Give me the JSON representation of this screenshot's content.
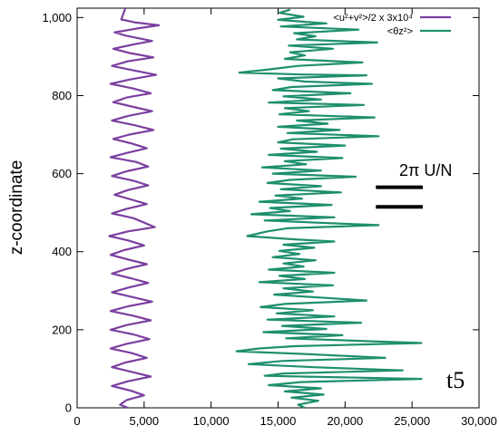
{
  "chart_data": {
    "type": "line",
    "title": "",
    "xlabel": "",
    "ylabel": "z-coordinate",
    "xlim": [
      0,
      30000
    ],
    "ylim": [
      0,
      1024
    ],
    "xticks": [
      "0",
      "5,000",
      "10,000",
      "15,000",
      "20,000",
      "25,000",
      "30,000"
    ],
    "xtick_values": [
      0,
      5000,
      10000,
      15000,
      20000,
      25000,
      30000
    ],
    "yticks": [
      "0",
      "200",
      "400",
      "600",
      "800",
      "1,000"
    ],
    "ytick_values": [
      0,
      200,
      400,
      600,
      800,
      1000
    ],
    "grid": false,
    "legend_position": "top-right",
    "annotations": {
      "scale_label": "2π U/N",
      "panel_label": "t5",
      "scale_bars_x": [
        22300,
        25800
      ],
      "scale_bars_y": [
        565,
        515
      ]
    },
    "series": [
      {
        "name": "<u²+v²>/2 x 3x10⁴",
        "color": "#7b3fa0",
        "points": [
          [
            3600,
            1024
          ],
          [
            3400,
            1005
          ],
          [
            3300,
            995
          ],
          [
            4400,
            987
          ],
          [
            6100,
            980
          ],
          [
            4500,
            972
          ],
          [
            2800,
            962
          ],
          [
            3700,
            953
          ],
          [
            5600,
            940
          ],
          [
            4200,
            931
          ],
          [
            2700,
            920
          ],
          [
            3900,
            909
          ],
          [
            5700,
            898
          ],
          [
            3800,
            888
          ],
          [
            2600,
            876
          ],
          [
            4300,
            864
          ],
          [
            5900,
            853
          ],
          [
            3900,
            841
          ],
          [
            2500,
            830
          ],
          [
            4200,
            818
          ],
          [
            5500,
            806
          ],
          [
            3700,
            795
          ],
          [
            2700,
            783
          ],
          [
            4200,
            771
          ],
          [
            5600,
            760
          ],
          [
            3800,
            748
          ],
          [
            2600,
            736
          ],
          [
            4300,
            724
          ],
          [
            5700,
            712
          ],
          [
            3900,
            700
          ],
          [
            2700,
            689
          ],
          [
            4100,
            677
          ],
          [
            5200,
            665
          ],
          [
            3700,
            653
          ],
          [
            2500,
            642
          ],
          [
            4400,
            630
          ],
          [
            5300,
            618
          ],
          [
            3700,
            606
          ],
          [
            2600,
            594
          ],
          [
            4200,
            582
          ],
          [
            5300,
            570
          ],
          [
            3800,
            558
          ],
          [
            2800,
            546
          ],
          [
            4000,
            534
          ],
          [
            5200,
            522
          ],
          [
            3700,
            510
          ],
          [
            2600,
            498
          ],
          [
            4200,
            486
          ],
          [
            5800,
            463
          ],
          [
            3800,
            452
          ],
          [
            2400,
            440
          ],
          [
            3900,
            428
          ],
          [
            5000,
            416
          ],
          [
            3500,
            404
          ],
          [
            2500,
            392
          ],
          [
            3800,
            380
          ],
          [
            5200,
            368
          ],
          [
            3700,
            356
          ],
          [
            2600,
            344
          ],
          [
            4000,
            332
          ],
          [
            5300,
            320
          ],
          [
            3800,
            308
          ],
          [
            2600,
            296
          ],
          [
            4100,
            284
          ],
          [
            5600,
            272
          ],
          [
            3800,
            260
          ],
          [
            2500,
            248
          ],
          [
            4200,
            236
          ],
          [
            5500,
            224
          ],
          [
            3700,
            212
          ],
          [
            2500,
            200
          ],
          [
            4200,
            188
          ],
          [
            5400,
            176
          ],
          [
            3700,
            164
          ],
          [
            2500,
            152
          ],
          [
            4100,
            140
          ],
          [
            5200,
            128
          ],
          [
            3600,
            116
          ],
          [
            2600,
            104
          ],
          [
            4100,
            92
          ],
          [
            5500,
            80
          ],
          [
            3800,
            68
          ],
          [
            2600,
            56
          ],
          [
            4000,
            44
          ],
          [
            5000,
            32
          ],
          [
            3700,
            20
          ],
          [
            3200,
            8
          ],
          [
            3800,
            0
          ]
        ]
      },
      {
        "name": "<θz²>",
        "color": "#1e8f6e",
        "points": [
          [
            15900,
            1020
          ],
          [
            15100,
            1012
          ],
          [
            16900,
            1002
          ],
          [
            15000,
            994
          ],
          [
            18600,
            985
          ],
          [
            15200,
            977
          ],
          [
            21000,
            969
          ],
          [
            16200,
            960
          ],
          [
            17800,
            952
          ],
          [
            16400,
            944
          ],
          [
            22400,
            936
          ],
          [
            15800,
            928
          ],
          [
            19100,
            920
          ],
          [
            15900,
            911
          ],
          [
            17000,
            903
          ],
          [
            15500,
            894
          ],
          [
            21300,
            885
          ],
          [
            16500,
            876
          ],
          [
            14100,
            866
          ],
          [
            12100,
            859
          ],
          [
            16800,
            854
          ],
          [
            21600,
            852
          ],
          [
            15000,
            844
          ],
          [
            17000,
            836
          ],
          [
            22000,
            830
          ],
          [
            16000,
            822
          ],
          [
            14600,
            814
          ],
          [
            20400,
            806
          ],
          [
            15400,
            798
          ],
          [
            18200,
            790
          ],
          [
            14300,
            782
          ],
          [
            21400,
            776
          ],
          [
            15500,
            768
          ],
          [
            17300,
            760
          ],
          [
            15100,
            752
          ],
          [
            22200,
            744
          ],
          [
            16400,
            736
          ],
          [
            18700,
            728
          ],
          [
            15000,
            720
          ],
          [
            19600,
            712
          ],
          [
            15700,
            704
          ],
          [
            22500,
            696
          ],
          [
            16100,
            688
          ],
          [
            15000,
            680
          ],
          [
            20000,
            672
          ],
          [
            15200,
            664
          ],
          [
            17900,
            656
          ],
          [
            14300,
            648
          ],
          [
            19800,
            640
          ],
          [
            15500,
            632
          ],
          [
            17100,
            624
          ],
          [
            13800,
            616
          ],
          [
            18200,
            608
          ],
          [
            14600,
            600
          ],
          [
            20800,
            592
          ],
          [
            15900,
            584
          ],
          [
            14200,
            576
          ],
          [
            18200,
            568
          ],
          [
            15200,
            560
          ],
          [
            19700,
            552
          ],
          [
            14800,
            544
          ],
          [
            16800,
            536
          ],
          [
            13600,
            528
          ],
          [
            19000,
            520
          ],
          [
            14400,
            512
          ],
          [
            15900,
            504
          ],
          [
            13000,
            496
          ],
          [
            19200,
            488
          ],
          [
            14000,
            480
          ],
          [
            22500,
            468
          ],
          [
            15700,
            460
          ],
          [
            14200,
            452
          ],
          [
            12700,
            440
          ],
          [
            16100,
            432
          ],
          [
            19200,
            426
          ],
          [
            15400,
            418
          ],
          [
            17700,
            410
          ],
          [
            15100,
            402
          ],
          [
            16600,
            394
          ],
          [
            14600,
            386
          ],
          [
            17800,
            378
          ],
          [
            15400,
            370
          ],
          [
            16900,
            362
          ],
          [
            14300,
            354
          ],
          [
            19200,
            346
          ],
          [
            15100,
            338
          ],
          [
            17000,
            330
          ],
          [
            13600,
            322
          ],
          [
            19100,
            314
          ],
          [
            15400,
            306
          ],
          [
            17600,
            298
          ],
          [
            14700,
            290
          ],
          [
            21600,
            275
          ],
          [
            15500,
            266
          ],
          [
            13700,
            258
          ],
          [
            17600,
            250
          ],
          [
            14900,
            242
          ],
          [
            19200,
            234
          ],
          [
            14200,
            226
          ],
          [
            21200,
            218
          ],
          [
            15300,
            210
          ],
          [
            18600,
            202
          ],
          [
            13900,
            194
          ],
          [
            19800,
            186
          ],
          [
            15600,
            178
          ],
          [
            25700,
            166
          ],
          [
            16200,
            158
          ],
          [
            13600,
            152
          ],
          [
            11900,
            145
          ],
          [
            17000,
            138
          ],
          [
            23000,
            128
          ],
          [
            15300,
            120
          ],
          [
            12800,
            112
          ],
          [
            17700,
            104
          ],
          [
            24300,
            96
          ],
          [
            15400,
            88
          ],
          [
            14000,
            82
          ],
          [
            25700,
            74
          ],
          [
            16700,
            66
          ],
          [
            14300,
            58
          ],
          [
            18200,
            50
          ],
          [
            15500,
            42
          ],
          [
            18400,
            34
          ],
          [
            16000,
            26
          ],
          [
            18000,
            18
          ],
          [
            16500,
            8
          ],
          [
            17000,
            0
          ]
        ]
      }
    ]
  }
}
